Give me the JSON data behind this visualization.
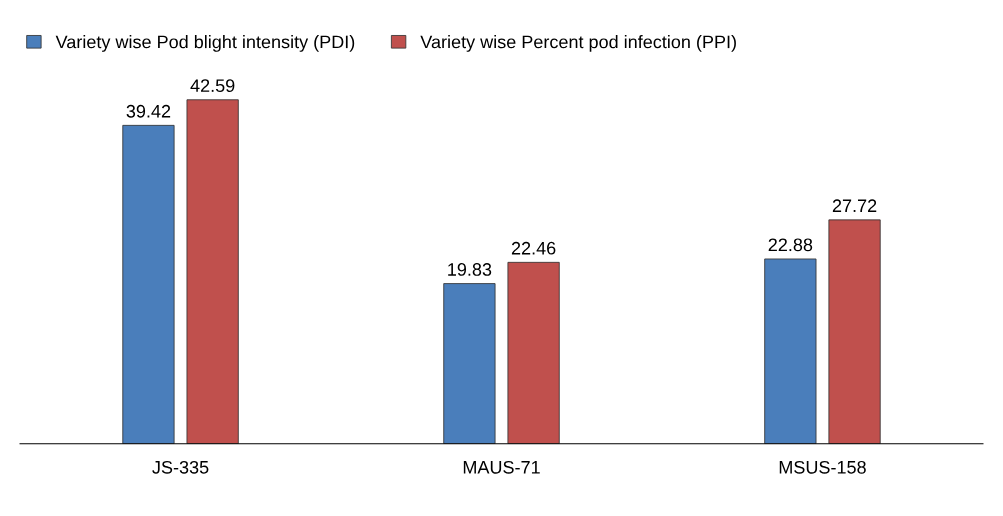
{
  "chart_data": {
    "type": "bar",
    "categories": [
      "JS-335",
      "MAUS-71",
      "MSUS-158"
    ],
    "series": [
      {
        "name": "Variety wise Pod blight intensity (PDI)",
        "color": "#4a7ebb",
        "values": [
          39.42,
          19.83,
          22.88
        ]
      },
      {
        "name": "Variety wise Percent pod infection (PPI)",
        "color": "#c0504d",
        "values": [
          42.59,
          22.46,
          27.72
        ]
      }
    ],
    "data_labels": true,
    "legend": "top left",
    "tick_labels": "x",
    "grid": false
  }
}
